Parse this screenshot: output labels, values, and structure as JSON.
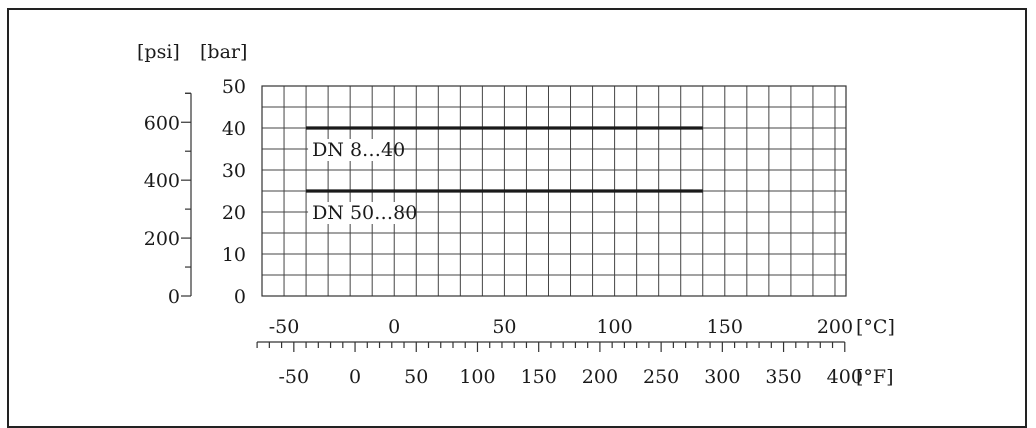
{
  "chart_data": {
    "type": "line",
    "unit_labels": {
      "psi": "[psi]",
      "bar": "[bar]",
      "celsius": "[°C]",
      "fahrenheit": "[°F]"
    },
    "x_celsius": {
      "range": [
        -60,
        205
      ],
      "ticks": [
        -50,
        0,
        50,
        100,
        150,
        200
      ],
      "grid_step": 10
    },
    "x_fahrenheit": {
      "ticks": [
        -50,
        0,
        50,
        100,
        150,
        200,
        250,
        300,
        350,
        400
      ],
      "minor_step": 10
    },
    "y_bar": {
      "range": [
        0,
        50
      ],
      "ticks": [
        0,
        10,
        20,
        30,
        40,
        50
      ],
      "grid_step": 5
    },
    "y_psi": {
      "ticks": [
        0,
        200,
        400,
        600
      ],
      "minor_step": 100
    },
    "grid": true,
    "series": [
      {
        "name": "DN 8...40",
        "label": "DN 8…40",
        "x": [
          -40,
          140
        ],
        "y": [
          40,
          40
        ]
      },
      {
        "name": "DN 50...80",
        "label": "DN 50…80",
        "x": [
          -40,
          140
        ],
        "y": [
          25,
          25
        ]
      }
    ]
  }
}
